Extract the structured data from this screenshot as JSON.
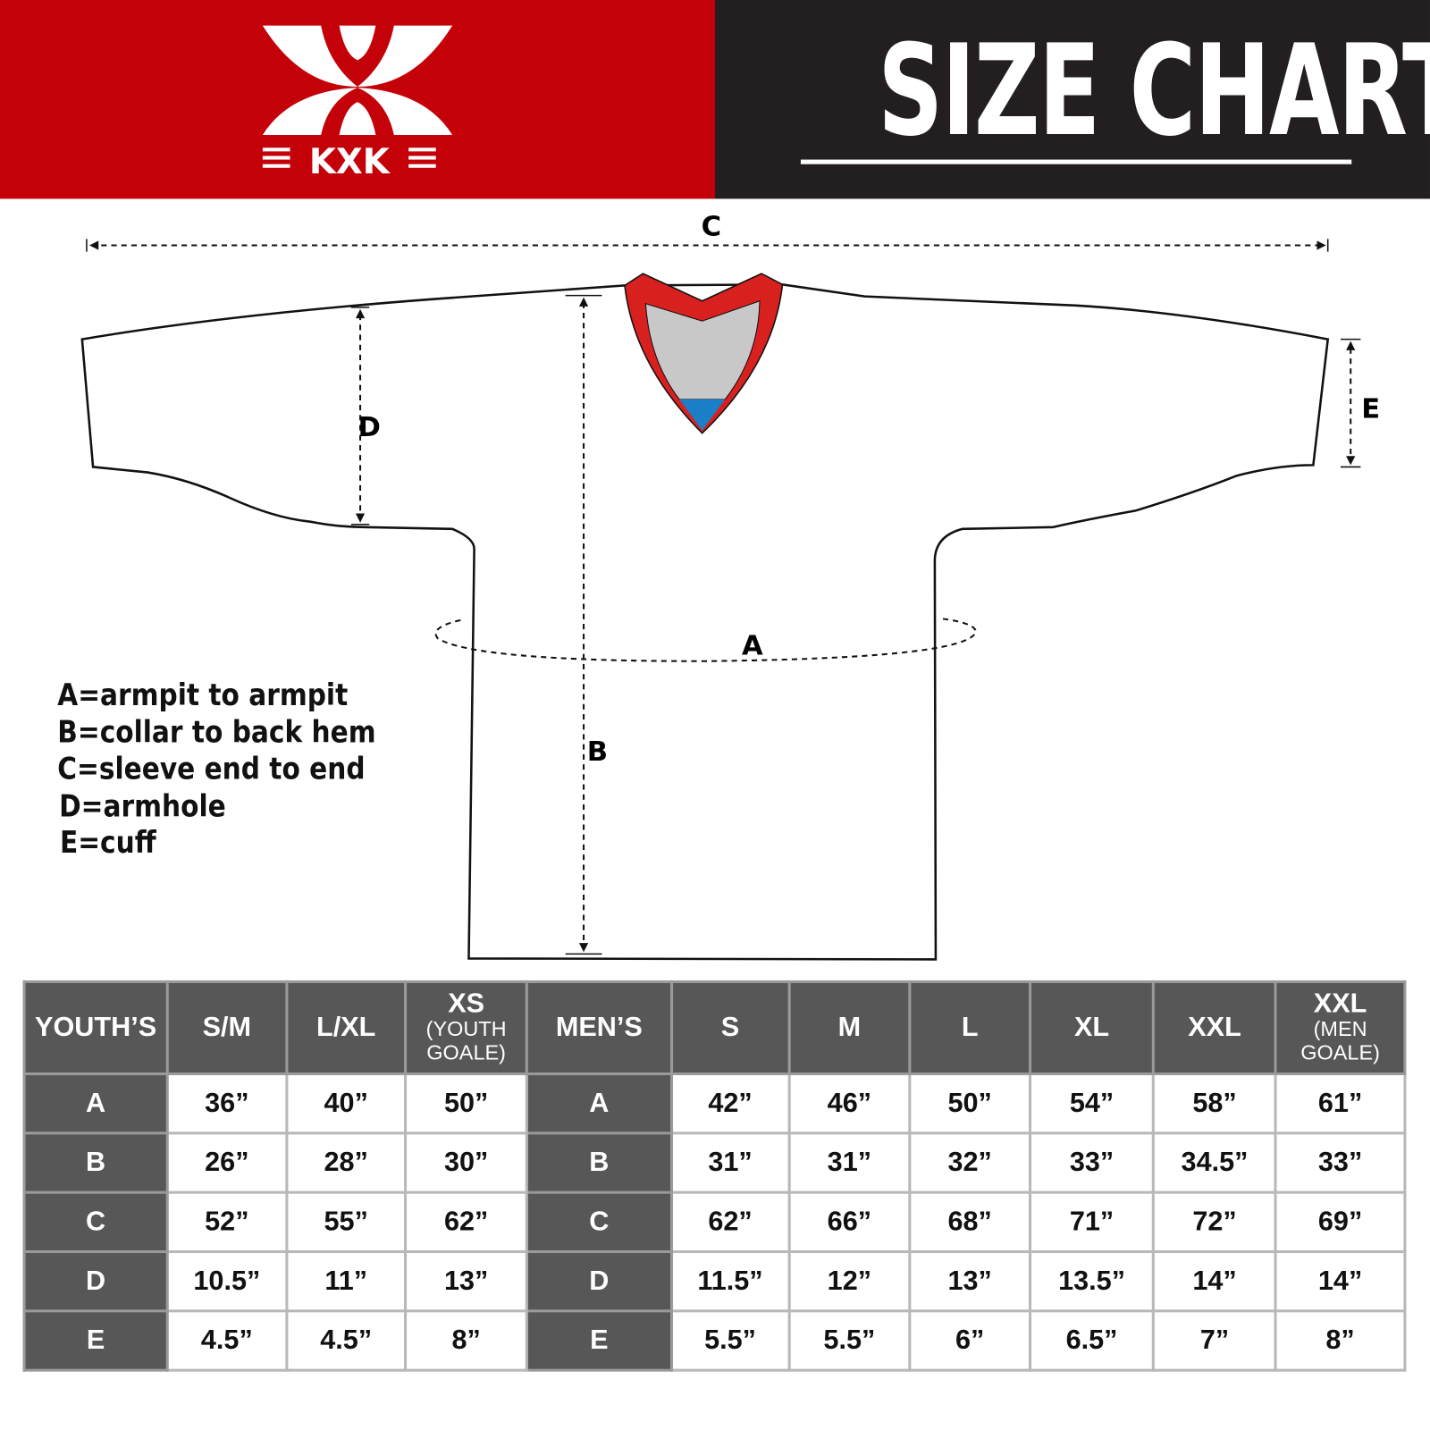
{
  "brand": {
    "logo_text": "KXK",
    "primary_color": "#c40008",
    "dark_color": "#231f20"
  },
  "title": "SIZE CHART",
  "diagram": {
    "labels": {
      "a": "A",
      "b": "B",
      "c": "C",
      "d": "D",
      "e": "E"
    },
    "collar_colors": {
      "trim": "#d8201f",
      "inner": "#c8c8c8",
      "accent": "#1a7fc7"
    }
  },
  "legend": [
    "A=armpit to armpit",
    "B=collar to back hem",
    "C=sleeve end to end",
    "D=armhole",
    "E=cuff"
  ],
  "table": {
    "headers": [
      {
        "main": "YOUTH’S"
      },
      {
        "main": "S/M"
      },
      {
        "main": "L/XL"
      },
      {
        "main": "XS",
        "sub": "(YOUTH GOALE)"
      },
      {
        "main": "MEN’S"
      },
      {
        "main": "S"
      },
      {
        "main": "M"
      },
      {
        "main": "L"
      },
      {
        "main": "XL"
      },
      {
        "main": "XXL"
      },
      {
        "main": "XXL",
        "sub": "(MEN GOALE)"
      }
    ],
    "rows": [
      {
        "youth_label": "A",
        "youth": [
          "36”",
          "40”",
          "50”"
        ],
        "men_label": "A",
        "men": [
          "42”",
          "46”",
          "50”",
          "54”",
          "58”",
          "61”"
        ]
      },
      {
        "youth_label": "B",
        "youth": [
          "26”",
          "28”",
          "30”"
        ],
        "men_label": "B",
        "men": [
          "31”",
          "31”",
          "32”",
          "33”",
          "34.5”",
          "33”"
        ]
      },
      {
        "youth_label": "C",
        "youth": [
          "52”",
          "55”",
          "62”"
        ],
        "men_label": "C",
        "men": [
          "62”",
          "66”",
          "68”",
          "71”",
          "72”",
          "69”"
        ]
      },
      {
        "youth_label": "D",
        "youth": [
          "10.5”",
          "11”",
          "13”"
        ],
        "men_label": "D",
        "men": [
          "11.5”",
          "12”",
          "13”",
          "13.5”",
          "14”",
          "14”"
        ]
      },
      {
        "youth_label": "E",
        "youth": [
          "4.5”",
          "4.5”",
          "8”"
        ],
        "men_label": "E",
        "men": [
          "5.5”",
          "5.5”",
          "6”",
          "6.5”",
          "7”",
          "8”"
        ]
      }
    ]
  }
}
